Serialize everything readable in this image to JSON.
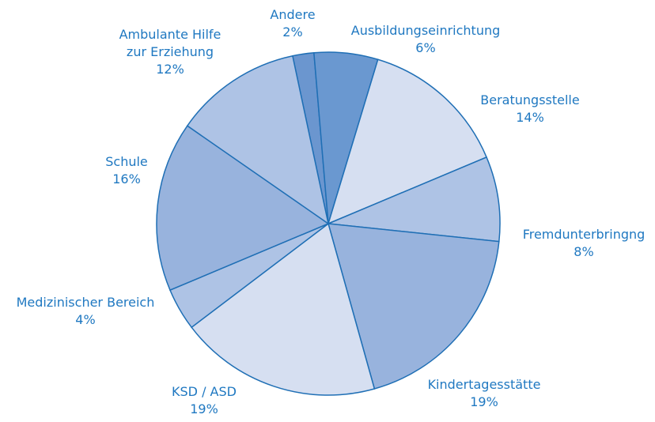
{
  "chart_data": {
    "type": "pie",
    "categories": [
      "Andere",
      "Ausbildungseinrichtung",
      "Beratungsstelle",
      "Fremdunterbringng",
      "Kindertagesstätte",
      "KSD / ASD",
      "Medizinischer Bereich",
      "Schule",
      "Ambulante Hilfe zur Erziehung"
    ],
    "values": [
      2,
      6,
      14,
      8,
      19,
      19,
      4,
      16,
      12
    ],
    "value_labels": [
      "2%",
      "6%",
      "14%",
      "8%",
      "19%",
      "19%",
      "4%",
      "16%",
      "12%"
    ],
    "colors": [
      "#6b96cf",
      "#6a98d0",
      "#d6dff1",
      "#aec3e5",
      "#98b3dd",
      "#d6dff1",
      "#aec3e5",
      "#98b3dd",
      "#aec3e5"
    ]
  }
}
